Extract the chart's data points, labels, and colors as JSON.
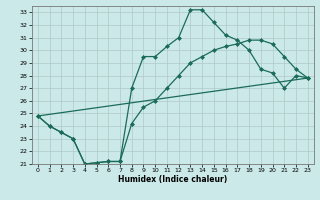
{
  "xlabel": "Humidex (Indice chaleur)",
  "bg_color": "#cce9e9",
  "line_color": "#1a6b5a",
  "grid_color": "#b0c8c8",
  "xlim": [
    -0.5,
    23.5
  ],
  "ylim": [
    21,
    33.5
  ],
  "xticks": [
    0,
    1,
    2,
    3,
    4,
    5,
    6,
    7,
    8,
    9,
    10,
    11,
    12,
    13,
    14,
    15,
    16,
    17,
    18,
    19,
    20,
    21,
    22,
    23
  ],
  "yticks": [
    21,
    22,
    23,
    24,
    25,
    26,
    27,
    28,
    29,
    30,
    31,
    32,
    33
  ],
  "line1_x": [
    0,
    1,
    2,
    3,
    4,
    5,
    6,
    7,
    8,
    9,
    10,
    11,
    12,
    13,
    14,
    15,
    16,
    17,
    18,
    19,
    20,
    21,
    22,
    23
  ],
  "line1_y": [
    24.8,
    24.0,
    23.5,
    23.0,
    21.0,
    21.1,
    21.2,
    21.2,
    27.0,
    29.5,
    29.5,
    30.3,
    31.0,
    33.2,
    33.2,
    32.2,
    31.2,
    30.8,
    30.0,
    28.5,
    28.2,
    27.0,
    28.0,
    27.8
  ],
  "line2_x": [
    0,
    1,
    2,
    3,
    4,
    5,
    6,
    7,
    8,
    9,
    10,
    11,
    12,
    13,
    14,
    15,
    16,
    17,
    18,
    19,
    20,
    21,
    22,
    23
  ],
  "line2_y": [
    24.8,
    24.0,
    23.5,
    23.0,
    21.0,
    21.1,
    21.2,
    21.2,
    24.2,
    25.5,
    26.0,
    27.0,
    28.0,
    29.0,
    29.5,
    30.0,
    30.3,
    30.5,
    30.8,
    30.8,
    30.5,
    29.5,
    28.5,
    27.8
  ],
  "line3_x": [
    0,
    23
  ],
  "line3_y": [
    24.8,
    27.8
  ],
  "marker": "D",
  "marker_size": 2.0,
  "linewidth": 0.9
}
